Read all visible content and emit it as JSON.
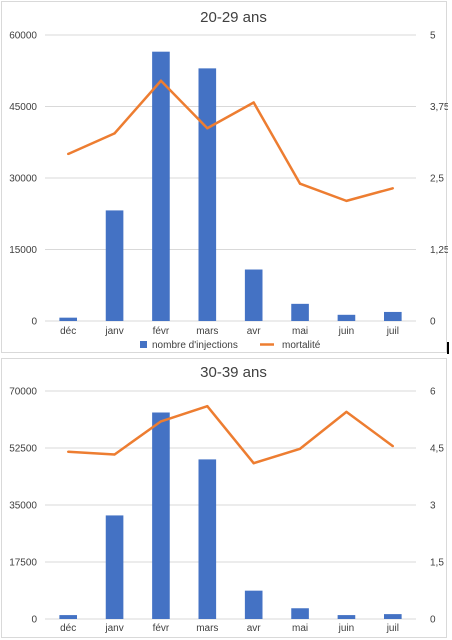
{
  "chart_data": [
    {
      "type": "bar",
      "title": "20-29 ans",
      "categories": [
        "déc",
        "janv",
        "févr",
        "mars",
        "avr",
        "mai",
        "juin",
        "juil"
      ],
      "y_ticks": [
        "0",
        "15000",
        "30000",
        "45000",
        "60000"
      ],
      "y2_ticks": [
        "0",
        "1,25",
        "2,5",
        "3,75",
        "5"
      ],
      "ylim": [
        0,
        60000
      ],
      "y2lim": [
        0,
        5
      ],
      "grid": true,
      "legend_position": "bottom",
      "series": [
        {
          "name": "nombre d'injections",
          "type": "bar",
          "axis": "left",
          "color": "#4472c4",
          "values": [
            700,
            23200,
            56500,
            53000,
            10800,
            3600,
            1300,
            1900
          ]
        },
        {
          "name": "mortalité",
          "type": "line",
          "axis": "right",
          "color": "#ed7d31",
          "values": [
            2.92,
            3.28,
            4.2,
            3.37,
            3.82,
            2.4,
            2.1,
            2.32
          ]
        }
      ]
    },
    {
      "type": "bar",
      "title": "30-39 ans",
      "categories": [
        "déc",
        "janv",
        "févr",
        "mars",
        "avr",
        "mai",
        "juin",
        "juil"
      ],
      "y_ticks": [
        "0",
        "17500",
        "35000",
        "52500",
        "70000"
      ],
      "y2_ticks": [
        "0",
        "1,5",
        "3",
        "4,5",
        "6"
      ],
      "ylim": [
        0,
        70000
      ],
      "y2lim": [
        0,
        6
      ],
      "grid": true,
      "series": [
        {
          "name": "nombre d'injections",
          "type": "bar",
          "axis": "left",
          "color": "#4472c4",
          "values": [
            1200,
            31800,
            63400,
            49000,
            8700,
            3300,
            1200,
            1500
          ]
        },
        {
          "name": "mortalité",
          "type": "line",
          "axis": "right",
          "color": "#ed7d31",
          "values": [
            4.4,
            4.33,
            5.2,
            5.6,
            4.1,
            4.48,
            5.45,
            4.55
          ]
        }
      ]
    }
  ]
}
